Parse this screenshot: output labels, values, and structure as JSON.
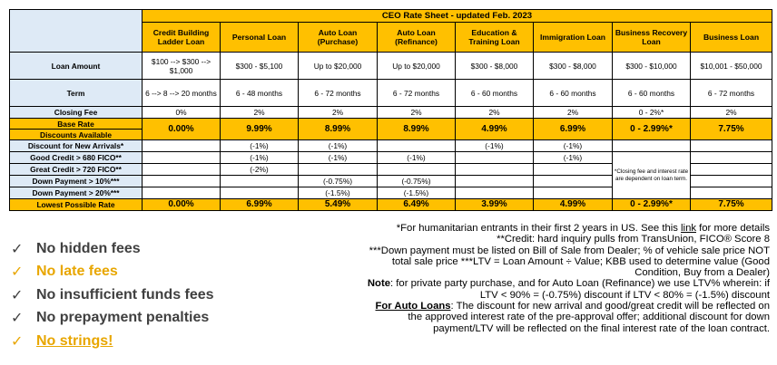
{
  "table": {
    "title": "CEO Rate Sheet - updated Feb. 2023",
    "columns": [
      "Credit Building Ladder Loan",
      "Personal Loan",
      "Auto Loan (Purchase)",
      "Auto Loan (Refinance)",
      "Education & Training Loan",
      "Immigration Loan",
      "Business Recovery Loan",
      "Business Loan"
    ],
    "rows": [
      {
        "label": "Loan Amount",
        "cells": [
          "$100 --> $300 --> $1,000",
          "$300 - $5,100",
          "Up to $20,000",
          "Up to $20,000",
          "$300 - $8,000",
          "$300 - $8,000",
          "$300 - $10,000",
          "$10,001 - $50,000"
        ]
      },
      {
        "label": "Term",
        "cells": [
          "6 --> 8 --> 20 months",
          "6 - 48 months",
          "6 - 72 months",
          "6 - 72 months",
          "6 - 60 months",
          "6 - 60 months",
          "6 - 60 months",
          "6 - 72 months"
        ]
      },
      {
        "label": "Closing Fee",
        "cells": [
          "0%",
          "2%",
          "2%",
          "2%",
          "2%",
          "2%",
          "0 - 2%*",
          "2%"
        ]
      }
    ],
    "base_rate": {
      "label": "Base Rate",
      "cells": [
        "0.00%",
        "9.99%",
        "8.99%",
        "8.99%",
        "4.99%",
        "6.99%",
        "0 - 2.99%*",
        "7.75%"
      ]
    },
    "discounts_label": "Discounts Available",
    "discounts": [
      {
        "label": "Discount for New Arrivals*",
        "cells": [
          "",
          "(-1%)",
          "(-1%)",
          "",
          "(-1%)",
          "(-1%)",
          "",
          ""
        ]
      },
      {
        "label": "Good Credit > 680 FICO**",
        "cells": [
          "",
          "(-1%)",
          "(-1%)",
          "(-1%)",
          "",
          "(-1%)",
          "",
          ""
        ]
      },
      {
        "label": "Great Credit > 720 FICO**",
        "cells": [
          "",
          "(-2%)",
          "",
          "",
          "",
          "",
          "",
          ""
        ]
      },
      {
        "label": "Down Payment > 10%***",
        "cells": [
          "",
          "",
          "(-0.75%)",
          "(-0.75%)",
          "",
          "",
          "",
          ""
        ]
      },
      {
        "label": "Down Payment > 20%***",
        "cells": [
          "",
          "",
          "(-1.5%)",
          "(-1.5%)",
          "",
          "",
          "",
          ""
        ]
      }
    ],
    "business_recovery_note": "*Closing fee and interest rate are dependent on loan term.",
    "lowest": {
      "label": "Lowest Possible Rate",
      "cells": [
        "0.00%",
        "6.99%",
        "5.49%",
        "6.49%",
        "3.99%",
        "4.99%",
        "0 - 2.99%*",
        "7.75%"
      ]
    }
  },
  "checklist": [
    {
      "text": "No hidden fees",
      "mark": "✓"
    },
    {
      "text": "No late fees",
      "mark": "✓"
    },
    {
      "text": "No insufficient funds fees",
      "mark": "✓"
    },
    {
      "text": "No prepayment penalties",
      "mark": "✓"
    },
    {
      "text": "No strings!",
      "mark": "✓"
    }
  ],
  "colors": {
    "gold": "#ffc000",
    "light_blue": "#deeaf6",
    "check_gold": "#e8a600",
    "check_gray": "#404040"
  },
  "notes": {
    "humanitarian_before": "*For humanitarian entrants in their first 2 years in US. See this ",
    "humanitarian_link": "link",
    "humanitarian_after": " for more details",
    "credit": "**Credit: hard inquiry pulls from TransUnion, FICO® Score 8",
    "down_payment": "***Down payment must be listed on Bill of Sale from Dealer; % of vehicle sale price NOT total sale price ***LTV = Loan Amount ÷ Value; KBB used to determine value (Good Condition, Buy from a Dealer)",
    "note_label": "Note",
    "note_text": ": for private party purchase, and for Auto Loan (Refinance) we use LTV% wherein: if LTV < 90% = (-0.75%) discount if LTV < 80% = (-1.5%) discount",
    "auto_label": "For Auto Loans",
    "auto_text": ": The discount for new arrival and good/great credit will be reflected on the approved interest rate of the pre-approval offer; additional discount for down payment/LTV will be reflected on the final interest rate of the loan contract."
  }
}
